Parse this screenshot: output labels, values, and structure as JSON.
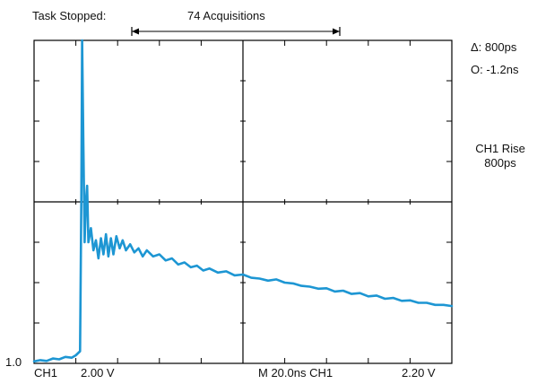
{
  "status": {
    "task_state": "Task Stopped:",
    "acquisitions": "74 Acquisitions"
  },
  "cursor_readouts": {
    "delta": "Δ: 800ps",
    "offset": "O: -1.2ns"
  },
  "measurement": {
    "label": "CH1 Rise",
    "value": "800ps"
  },
  "channel_ref_marker": "1.0",
  "bottom_bar": {
    "channel": "CH1",
    "volts_per_div": "2.00 V",
    "timebase_trigger": "M 20.0ns CH1",
    "trigger_level": "2.20 V"
  },
  "colors": {
    "trace": "#1d96d3",
    "graticule": "#000000",
    "background": "#ffffff"
  },
  "graticule": {
    "h_divisions": 10,
    "v_divisions": 8
  },
  "waveform": {
    "channel": "CH1",
    "x_unit": "div",
    "y_unit": "div",
    "x_range": [
      0,
      10
    ],
    "y_range": [
      0,
      8
    ],
    "points": [
      [
        0.0,
        0.05
      ],
      [
        0.15,
        0.08
      ],
      [
        0.3,
        0.06
      ],
      [
        0.45,
        0.12
      ],
      [
        0.6,
        0.1
      ],
      [
        0.75,
        0.16
      ],
      [
        0.9,
        0.14
      ],
      [
        1.0,
        0.2
      ],
      [
        1.1,
        0.3
      ],
      [
        1.13,
        4.0
      ],
      [
        1.15,
        8.0
      ],
      [
        1.18,
        5.4
      ],
      [
        1.21,
        3.0
      ],
      [
        1.24,
        4.0
      ],
      [
        1.27,
        4.4
      ],
      [
        1.3,
        3.0
      ],
      [
        1.36,
        3.35
      ],
      [
        1.42,
        2.8
      ],
      [
        1.48,
        3.05
      ],
      [
        1.54,
        2.6
      ],
      [
        1.6,
        3.1
      ],
      [
        1.66,
        2.7
      ],
      [
        1.72,
        3.2
      ],
      [
        1.78,
        2.65
      ],
      [
        1.84,
        3.1
      ],
      [
        1.9,
        2.7
      ],
      [
        1.97,
        3.15
      ],
      [
        2.05,
        2.85
      ],
      [
        2.12,
        3.05
      ],
      [
        2.2,
        2.8
      ],
      [
        2.3,
        2.95
      ],
      [
        2.4,
        2.75
      ],
      [
        2.5,
        2.85
      ],
      [
        2.6,
        2.65
      ],
      [
        2.7,
        2.8
      ],
      [
        2.85,
        2.65
      ],
      [
        3.0,
        2.7
      ],
      [
        3.15,
        2.55
      ],
      [
        3.3,
        2.6
      ],
      [
        3.45,
        2.45
      ],
      [
        3.6,
        2.5
      ],
      [
        3.75,
        2.38
      ],
      [
        3.9,
        2.42
      ],
      [
        4.05,
        2.3
      ],
      [
        4.2,
        2.35
      ],
      [
        4.4,
        2.25
      ],
      [
        4.6,
        2.28
      ],
      [
        4.8,
        2.18
      ],
      [
        5.0,
        2.2
      ],
      [
        5.2,
        2.12
      ],
      [
        5.4,
        2.1
      ],
      [
        5.6,
        2.05
      ],
      [
        5.8,
        2.08
      ],
      [
        6.0,
        2.0
      ],
      [
        6.2,
        1.98
      ],
      [
        6.4,
        1.92
      ],
      [
        6.6,
        1.9
      ],
      [
        6.8,
        1.85
      ],
      [
        7.0,
        1.86
      ],
      [
        7.2,
        1.78
      ],
      [
        7.4,
        1.8
      ],
      [
        7.6,
        1.72
      ],
      [
        7.8,
        1.74
      ],
      [
        8.0,
        1.66
      ],
      [
        8.2,
        1.68
      ],
      [
        8.4,
        1.6
      ],
      [
        8.6,
        1.62
      ],
      [
        8.8,
        1.55
      ],
      [
        9.0,
        1.56
      ],
      [
        9.2,
        1.5
      ],
      [
        9.4,
        1.5
      ],
      [
        9.6,
        1.45
      ],
      [
        9.8,
        1.45
      ],
      [
        10.0,
        1.42
      ]
    ]
  }
}
